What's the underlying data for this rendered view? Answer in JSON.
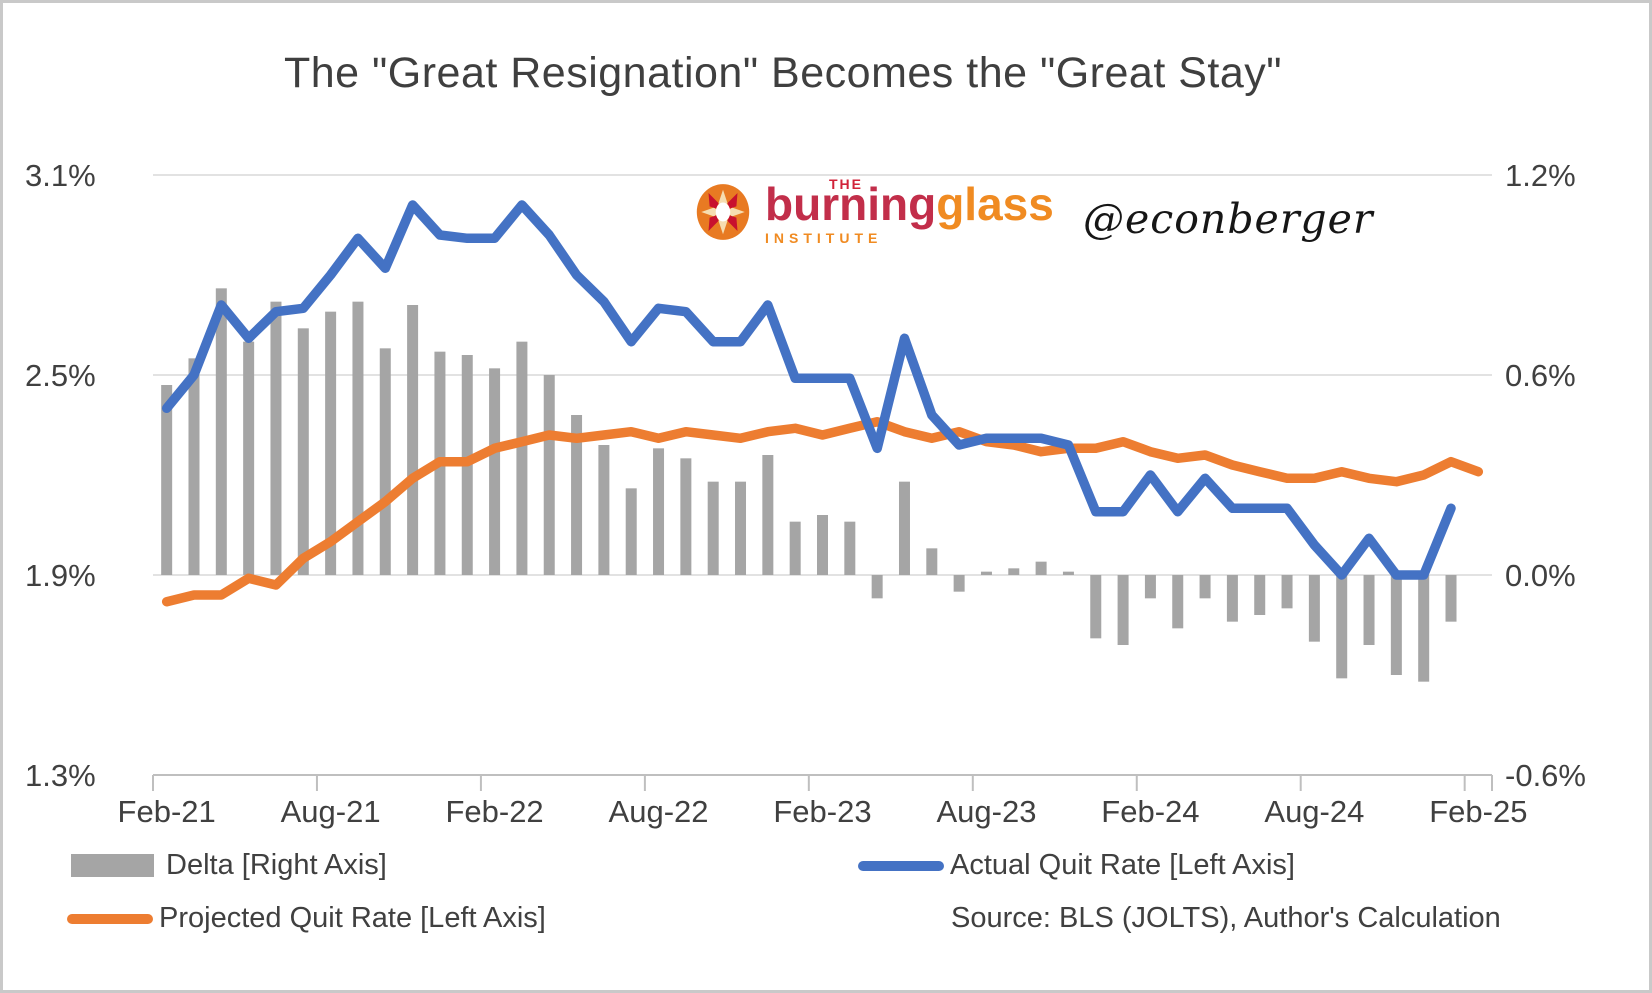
{
  "title": "The \"Great Resignation\" Becomes the \"Great Stay\"",
  "logo": {
    "the": "THE",
    "burning": "burning",
    "glass": "glass",
    "institute": "INSTITUTE"
  },
  "watermark": "@econberger",
  "legend": {
    "delta_label": "Delta [Right Axis]",
    "actual_label": "Actual Quit Rate [Left Axis]",
    "projected_label": "Projected Quit Rate [Left Axis]"
  },
  "source": "Source: BLS (JOLTS), Author's Calculation",
  "colors": {
    "actual_line": "#4472C4",
    "projected_line": "#ED7D31",
    "delta_bar": "#A5A5A5",
    "gridline": "#D9D9D9",
    "axis_line": "#BFBFBF",
    "text": "#404040",
    "title_text": "#3F3F3F"
  },
  "chart_data": {
    "type": "combo (monthly bars + 2 lines)",
    "title": "The \"Great Resignation\" Becomes the \"Great Stay\"",
    "months": [
      "Feb-21",
      "Mar-21",
      "Apr-21",
      "May-21",
      "Jun-21",
      "Jul-21",
      "Aug-21",
      "Sep-21",
      "Oct-21",
      "Nov-21",
      "Dec-21",
      "Jan-22",
      "Feb-22",
      "Mar-22",
      "Apr-22",
      "May-22",
      "Jun-22",
      "Jul-22",
      "Aug-22",
      "Sep-22",
      "Oct-22",
      "Nov-22",
      "Dec-22",
      "Jan-23",
      "Feb-23",
      "Mar-23",
      "Apr-23",
      "May-23",
      "Jun-23",
      "Jul-23",
      "Aug-23",
      "Sep-23",
      "Oct-23",
      "Nov-23",
      "Dec-23",
      "Jan-24",
      "Feb-24",
      "Mar-24",
      "Apr-24",
      "May-24",
      "Jun-24",
      "Jul-24",
      "Aug-24",
      "Sep-24",
      "Oct-24",
      "Nov-24",
      "Dec-24",
      "Jan-25",
      "Feb-25"
    ],
    "x_tick_labels": [
      "Feb-21",
      "Aug-21",
      "Feb-22",
      "Aug-22",
      "Feb-23",
      "Aug-23",
      "Feb-24",
      "Aug-24",
      "Feb-25"
    ],
    "x_tick_every_n_months": 6,
    "left_axis": {
      "ticks": [
        "3.1%",
        "2.5%",
        "1.9%",
        "1.3%"
      ],
      "tick_values": [
        3.1,
        2.5,
        1.9,
        1.3
      ],
      "min": 1.3,
      "max": 3.1
    },
    "right_axis": {
      "ticks": [
        "1.2%",
        "0.6%",
        "0.0%",
        "-0.6%"
      ],
      "tick_values": [
        1.2,
        0.6,
        0.0,
        -0.6
      ],
      "min": -0.6,
      "max": 1.2
    },
    "grid": "horizontal only",
    "legend_position": "bottom",
    "series": [
      {
        "name": "Actual Quit Rate [Left Axis]",
        "type": "line",
        "axis": "left",
        "color": "#4472C4",
        "values": [
          2.4,
          2.5,
          2.71,
          2.61,
          2.69,
          2.7,
          2.8,
          2.91,
          2.82,
          3.01,
          2.92,
          2.91,
          2.91,
          3.01,
          2.92,
          2.8,
          2.72,
          2.6,
          2.7,
          2.69,
          2.6,
          2.6,
          2.71,
          2.49,
          2.49,
          2.49,
          2.28,
          2.61,
          2.38,
          2.29,
          2.31,
          2.31,
          2.31,
          2.29,
          2.09,
          2.09,
          2.2,
          2.09,
          2.19,
          2.1,
          2.1,
          2.1,
          1.99,
          1.9,
          2.01,
          1.9,
          1.9,
          2.1,
          null
        ]
      },
      {
        "name": "Projected Quit Rate [Left Axis]",
        "type": "line",
        "axis": "left",
        "color": "#ED7D31",
        "values": [
          1.82,
          1.84,
          1.84,
          1.89,
          1.87,
          1.95,
          2.0,
          2.06,
          2.12,
          2.19,
          2.24,
          2.24,
          2.28,
          2.3,
          2.32,
          2.31,
          2.32,
          2.33,
          2.31,
          2.33,
          2.32,
          2.31,
          2.33,
          2.34,
          2.32,
          2.34,
          2.36,
          2.33,
          2.31,
          2.33,
          2.3,
          2.29,
          2.27,
          2.28,
          2.28,
          2.3,
          2.27,
          2.25,
          2.26,
          2.23,
          2.21,
          2.19,
          2.19,
          2.21,
          2.19,
          2.18,
          2.2,
          2.24,
          2.21
        ]
      },
      {
        "name": "Delta [Right Axis]",
        "type": "bar",
        "axis": "right",
        "color": "#A5A5A5",
        "values": [
          0.57,
          0.65,
          0.86,
          0.7,
          0.82,
          0.74,
          0.79,
          0.82,
          0.68,
          0.81,
          0.67,
          0.66,
          0.62,
          0.7,
          0.6,
          0.48,
          0.39,
          0.26,
          0.38,
          0.35,
          0.28,
          0.28,
          0.36,
          0.16,
          0.18,
          0.16,
          -0.07,
          0.28,
          0.08,
          -0.05,
          0.01,
          0.02,
          0.04,
          0.01,
          -0.19,
          -0.21,
          -0.07,
          -0.16,
          -0.07,
          -0.14,
          -0.12,
          -0.1,
          -0.2,
          -0.31,
          -0.21,
          -0.3,
          -0.32,
          -0.14,
          null
        ]
      }
    ]
  }
}
